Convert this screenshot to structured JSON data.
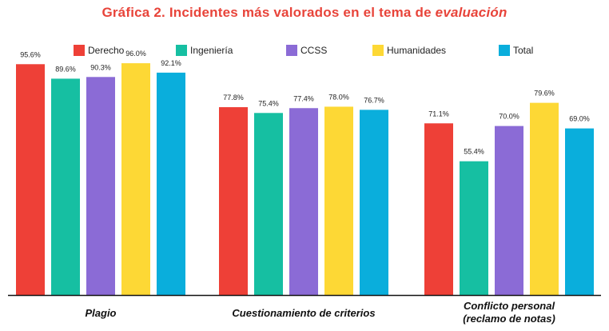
{
  "title_main": "Gráfica 2. Incidentes más valorados en el tema de ",
  "title_em": "evaluación",
  "chart_data": {
    "type": "bar",
    "title": "Gráfica 2. Incidentes más valorados en el tema de evaluación",
    "categories": [
      "Plagio",
      "Cuestionamiento de criterios",
      "Conflicto personal\n(reclamo de notas)"
    ],
    "series": [
      {
        "name": "Derecho",
        "color": "#ee4037",
        "values": [
          95.6,
          77.8,
          71.1
        ],
        "labels": [
          "95.6%",
          "77.8%",
          "71.1%"
        ]
      },
      {
        "name": "Ingeniería",
        "color": "#16bfa2",
        "values": [
          89.6,
          75.4,
          55.4
        ],
        "labels": [
          "89.6%",
          "75.4%",
          "55.4%"
        ]
      },
      {
        "name": "CCSS",
        "color": "#8b6bd6",
        "values": [
          90.3,
          77.4,
          70.0
        ],
        "labels": [
          "90.3%",
          "77.4%",
          "70.0%"
        ]
      },
      {
        "name": "Humanidades",
        "color": "#fdd835",
        "values": [
          96.0,
          78.0,
          79.6
        ],
        "labels": [
          "96.0%",
          "78.0%",
          "79.6%"
        ]
      },
      {
        "name": "Total",
        "color": "#0aaedc",
        "values": [
          92.1,
          76.7,
          69.0
        ],
        "labels": [
          "92.1%",
          "76.7%",
          "69.0%"
        ]
      }
    ],
    "ylim": [
      0,
      100
    ],
    "xlabel": "",
    "ylabel": "",
    "grid": false,
    "legend": "top"
  }
}
